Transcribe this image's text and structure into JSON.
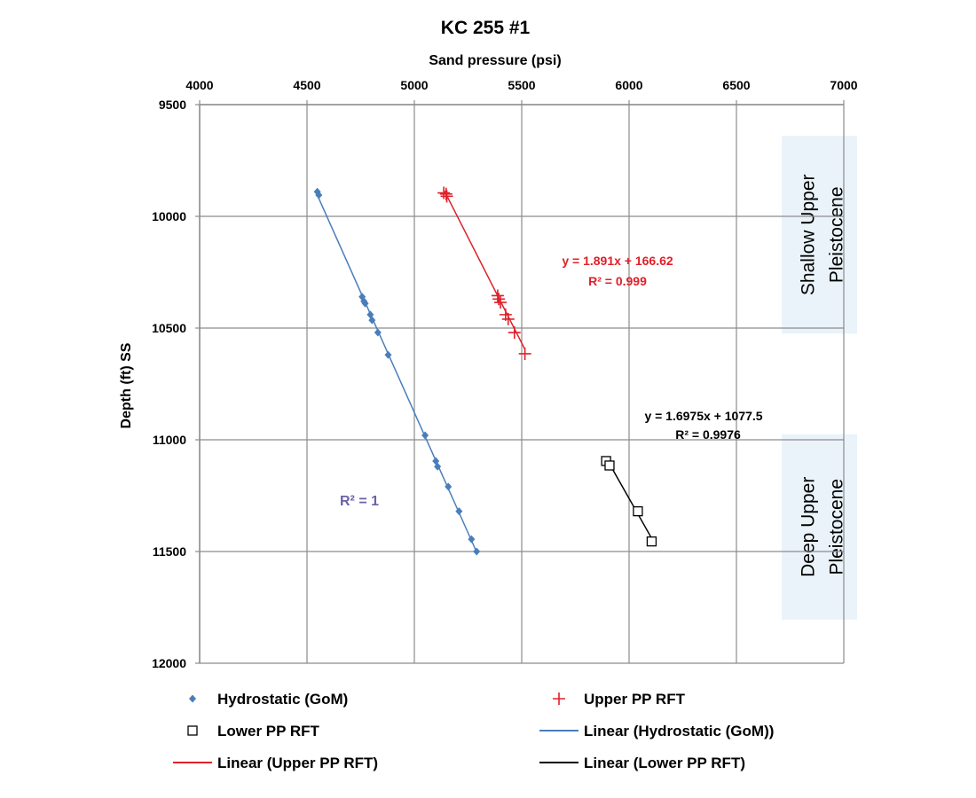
{
  "chart_data": {
    "type": "scatter",
    "title": "KC 255 #1",
    "xlabel": "Sand pressure (psi)",
    "ylabel": "Depth (ft) SS",
    "xlim": [
      4000,
      7000
    ],
    "ylim": [
      9500,
      12000
    ],
    "y_inverted": true,
    "x_axis_position": "top",
    "grid": true,
    "x_ticks": [
      "4000",
      "4500",
      "5000",
      "5500",
      "6000",
      "6500",
      "7000"
    ],
    "y_ticks": [
      "9500",
      "10000",
      "10500",
      "11000",
      "11500",
      "12000"
    ],
    "series": [
      {
        "name": "Hydrostatic (GoM)",
        "marker": "diamond",
        "color": "#4a7ebb",
        "points": [
          [
            4548,
            9890
          ],
          [
            4555,
            9905
          ],
          [
            4757,
            10360
          ],
          [
            4765,
            10380
          ],
          [
            4771,
            10390
          ],
          [
            4795,
            10440
          ],
          [
            4803,
            10465
          ],
          [
            4830,
            10520
          ],
          [
            4878,
            10620
          ],
          [
            5050,
            10980
          ],
          [
            5100,
            11095
          ],
          [
            5108,
            11120
          ],
          [
            5158,
            11210
          ],
          [
            5208,
            11320
          ],
          [
            5266,
            11445
          ],
          [
            5290,
            11500
          ]
        ]
      },
      {
        "name": "Upper PP RFT",
        "marker": "plus",
        "color": "#e0202a",
        "points": [
          [
            5137,
            9895
          ],
          [
            5148,
            9900
          ],
          [
            5151,
            9910
          ],
          [
            5388,
            10355
          ],
          [
            5393,
            10370
          ],
          [
            5401,
            10385
          ],
          [
            5425,
            10440
          ],
          [
            5437,
            10460
          ],
          [
            5466,
            10520
          ],
          [
            5515,
            10615
          ]
        ]
      },
      {
        "name": "Lower PP RFT",
        "marker": "square",
        "color": "#000000",
        "points": [
          [
            5893,
            11095
          ],
          [
            5909,
            11115
          ],
          [
            6041,
            11320
          ],
          [
            6105,
            11455
          ]
        ]
      },
      {
        "name": "Linear (Hydrostatic  (GoM))",
        "type": "trendline",
        "color": "#4a7ebb",
        "x_range": [
          4545,
          5290
        ],
        "equation": "",
        "r2_label": "R² = 1"
      },
      {
        "name": "Linear (Upper PP RFT)",
        "type": "trendline",
        "color": "#e0202a",
        "x_range": [
          5140,
          5515
        ],
        "slope": 1.891,
        "intercept": 166.62,
        "equation": "y = 1.891x + 166.62",
        "r2_label": "R² = 0.999"
      },
      {
        "name": "Linear (Lower PP RFT)",
        "type": "trendline",
        "color": "#000000",
        "x_range": [
          5895,
          6105
        ],
        "slope": 1.6975,
        "intercept": 1077.5,
        "equation": "y = 1.6975x + 1077.5",
        "r2_label": "R² = 0.9976"
      }
    ],
    "zones": [
      {
        "lines": [
          "Shallow Upper",
          "Pleistocene"
        ],
        "depth_range": [
          9640,
          10525
        ]
      },
      {
        "lines": [
          "Deep Upper",
          "Pleistocene"
        ],
        "depth_range": [
          10975,
          11805
        ]
      }
    ],
    "zone_fill": "#eaf3fa",
    "legend": {
      "position": "bottom",
      "entries": [
        {
          "label": "Hydrostatic (GoM)",
          "symbol": "diamond",
          "color": "#4a7ebb"
        },
        {
          "label": "Upper PP RFT",
          "symbol": "plus",
          "color": "#e0202a"
        },
        {
          "label": "Lower PP RFT",
          "symbol": "square",
          "color": "#000000"
        },
        {
          "label": "Linear (Hydrostatic  (GoM))",
          "symbol": "line",
          "color": "#4a7ebb"
        },
        {
          "label": "Linear (Upper PP RFT)",
          "symbol": "line",
          "color": "#e0202a"
        },
        {
          "label": "Linear (Lower PP RFT)",
          "symbol": "line",
          "color": "#000000"
        }
      ]
    }
  }
}
